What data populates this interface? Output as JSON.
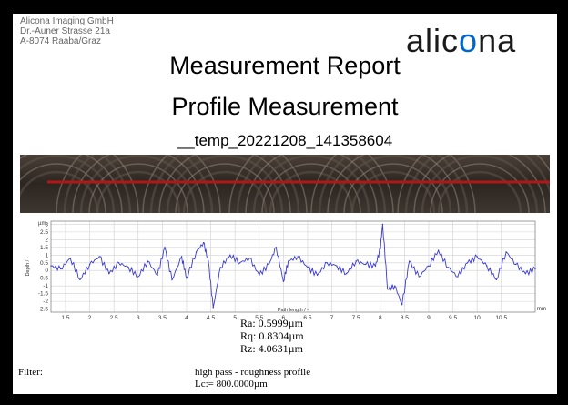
{
  "company": {
    "name": "Alicona Imaging GmbH",
    "street": "Dr.-Auner Strasse 21a",
    "city": "A-8074 Raaba/Graz"
  },
  "logo": {
    "text_before": "alic",
    "text_after": "na",
    "color": "#1a1a1a",
    "accent": "#0066cc"
  },
  "report": {
    "title": "Measurement Report",
    "subtitle": "Profile Measurement",
    "file": "__temp_20221208_141358604"
  },
  "chart_data": {
    "type": "line",
    "ylabel": "Depth / -",
    "xlabel": "Path length / -",
    "y_unit": "µm",
    "x_unit": "mm",
    "xlim": [
      1.2,
      11.2
    ],
    "ylim": [
      -2.7,
      3.2
    ],
    "x_ticks": [
      "1.5",
      "2",
      "2.5",
      "3",
      "3.5",
      "4",
      "4.5",
      "5",
      "5.5",
      "6",
      "6.5",
      "7",
      "7.5",
      "8",
      "8.5",
      "9",
      "9.5",
      "10",
      "10.5"
    ],
    "y_ticks": [
      "3",
      "2.5",
      "2",
      "1.5",
      "1",
      "0.5",
      "0",
      "-0.5",
      "-1",
      "-1.5",
      "-2",
      "-2.5"
    ],
    "grid": true,
    "series_color": "#3a3ad0",
    "x": [
      1.2,
      1.4,
      1.6,
      1.8,
      2.0,
      2.2,
      2.4,
      2.6,
      2.8,
      3.0,
      3.2,
      3.4,
      3.55,
      3.7,
      3.9,
      4.0,
      4.2,
      4.35,
      4.45,
      4.55,
      4.7,
      4.9,
      5.1,
      5.3,
      5.5,
      5.7,
      5.85,
      6.0,
      6.1,
      6.3,
      6.5,
      6.7,
      6.9,
      7.1,
      7.3,
      7.5,
      7.7,
      7.9,
      8.0,
      8.05,
      8.15,
      8.3,
      8.45,
      8.6,
      8.8,
      9.0,
      9.2,
      9.4,
      9.6,
      9.8,
      10.0,
      10.2,
      10.4,
      10.6,
      10.8,
      11.0,
      11.2
    ],
    "y": [
      0.3,
      0.1,
      0.8,
      -0.6,
      0.4,
      0.9,
      -0.2,
      0.5,
      0.2,
      -0.4,
      0.6,
      -0.3,
      1.5,
      -0.6,
      0.9,
      -0.5,
      1.2,
      1.8,
      0.6,
      -2.4,
      0.2,
      1.0,
      0.5,
      0.8,
      -0.3,
      0.4,
      1.5,
      -0.7,
      0.6,
      0.9,
      0.2,
      -0.3,
      0.5,
      0.3,
      -0.2,
      0.6,
      0.4,
      0.3,
      1.4,
      3.0,
      -1.2,
      -1.0,
      -2.2,
      0.6,
      -0.4,
      0.3,
      1.3,
      0.2,
      -0.4,
      0.5,
      0.9,
      0.3,
      -0.6,
      1.2,
      0.4,
      -0.2,
      0.1
    ]
  },
  "stats": {
    "ra": "Ra: 0.5999µm",
    "rq": "Rq: 0.8304µm",
    "rz": "Rz: 4.0631µm"
  },
  "filter": {
    "label": "Filter:",
    "type": "high pass - roughness profile",
    "lc": "Lc:= 800.0000µm"
  }
}
